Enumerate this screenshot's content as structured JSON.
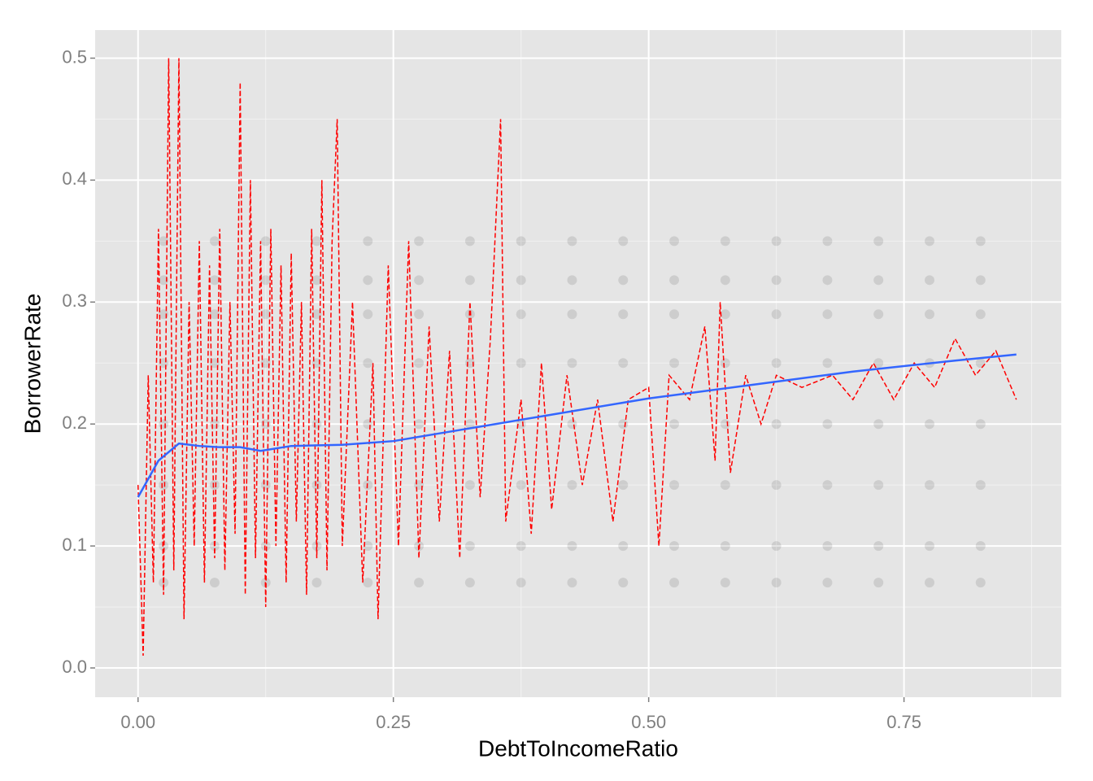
{
  "chart_data": {
    "type": "scatter",
    "x_label": "DebtToIncomeRatio",
    "y_label": "BorrowerRate",
    "xlim": [
      -0.042,
      0.904
    ],
    "ylim": [
      -0.024,
      0.523
    ],
    "xticks": [
      {
        "value": 0,
        "label": "0.00"
      },
      0.25,
      {
        "value": 0.5,
        "label": "0.50"
      },
      0.75
    ],
    "yticks": [
      {
        "value": 0,
        "label": "0.0"
      },
      0.1,
      0.2,
      0.3,
      0.4,
      0.5
    ],
    "x_minor_grid": [
      0.125,
      0.375,
      0.625,
      0.875
    ],
    "y_minor_grid": [
      0.05,
      0.15,
      0.25,
      0.35,
      0.45
    ],
    "grid": true,
    "layers": [
      {
        "type": "scatter",
        "color": "#000000",
        "alpha": 0.1,
        "x": [
          0.025,
          0.075,
          0.125,
          0.175,
          0.225,
          0.275,
          0.325,
          0.375,
          0.425,
          0.475,
          0.525,
          0.575,
          0.625,
          0.675,
          0.725,
          0.775,
          0.825,
          0.025,
          0.075,
          0.125,
          0.175,
          0.225,
          0.275,
          0.325,
          0.375,
          0.425,
          0.475,
          0.525,
          0.575,
          0.625,
          0.675,
          0.725,
          0.775,
          0.825,
          0.025,
          0.075,
          0.125,
          0.175,
          0.225,
          0.275,
          0.325,
          0.375,
          0.425,
          0.475,
          0.525,
          0.575,
          0.625,
          0.675,
          0.725,
          0.775,
          0.825,
          0.025,
          0.075,
          0.125,
          0.175,
          0.225,
          0.275,
          0.325,
          0.375,
          0.425,
          0.475,
          0.525,
          0.575,
          0.625,
          0.675,
          0.725,
          0.775,
          0.825,
          0.025,
          0.075,
          0.125,
          0.175,
          0.225,
          0.275,
          0.325,
          0.375,
          0.425,
          0.475,
          0.525,
          0.575,
          0.625,
          0.675,
          0.725,
          0.775,
          0.825,
          0.025,
          0.075,
          0.125,
          0.175,
          0.225,
          0.275,
          0.325,
          0.375,
          0.425,
          0.475,
          0.525,
          0.575,
          0.625,
          0.675,
          0.725,
          0.775,
          0.825,
          0.025,
          0.075,
          0.125,
          0.175,
          0.225,
          0.275,
          0.325,
          0.375,
          0.425,
          0.475,
          0.525,
          0.575,
          0.625,
          0.675,
          0.725,
          0.775,
          0.825,
          0.025,
          0.075,
          0.125,
          0.175,
          0.225,
          0.275,
          0.325,
          0.375,
          0.425,
          0.475,
          0.525,
          0.575,
          0.625,
          0.675,
          0.725,
          0.775,
          0.825
        ],
        "y": [
          0.35,
          0.35,
          0.35,
          0.35,
          0.35,
          0.35,
          0.35,
          0.35,
          0.35,
          0.35,
          0.35,
          0.35,
          0.35,
          0.35,
          0.35,
          0.35,
          0.35,
          0.318,
          0.318,
          0.318,
          0.318,
          0.318,
          0.318,
          0.318,
          0.318,
          0.318,
          0.318,
          0.318,
          0.318,
          0.318,
          0.318,
          0.318,
          0.318,
          0.318,
          0.29,
          0.29,
          0.29,
          0.29,
          0.29,
          0.29,
          0.29,
          0.29,
          0.29,
          0.29,
          0.29,
          0.29,
          0.29,
          0.29,
          0.29,
          0.29,
          0.29,
          0.25,
          0.25,
          0.25,
          0.25,
          0.25,
          0.25,
          0.25,
          0.25,
          0.25,
          0.25,
          0.25,
          0.25,
          0.25,
          0.25,
          0.25,
          0.25,
          0.25,
          0.2,
          0.2,
          0.2,
          0.2,
          0.2,
          0.2,
          0.2,
          0.2,
          0.2,
          0.2,
          0.2,
          0.2,
          0.2,
          0.2,
          0.2,
          0.2,
          0.2,
          0.15,
          0.15,
          0.15,
          0.15,
          0.15,
          0.15,
          0.15,
          0.15,
          0.15,
          0.15,
          0.15,
          0.15,
          0.15,
          0.15,
          0.15,
          0.15,
          0.15,
          0.1,
          0.1,
          0.1,
          0.1,
          0.1,
          0.1,
          0.1,
          0.1,
          0.1,
          0.1,
          0.1,
          0.1,
          0.1,
          0.1,
          0.1,
          0.1,
          0.1,
          0.07,
          0.07,
          0.07,
          0.07,
          0.07,
          0.07,
          0.07,
          0.07,
          0.07,
          0.07,
          0.07,
          0.07,
          0.07,
          0.07,
          0.07,
          0.07,
          0.07
        ]
      },
      {
        "type": "line",
        "style": "dashed",
        "color": "#ff0000",
        "x": [
          0,
          0.005,
          0.01,
          0.015,
          0.02,
          0.025,
          0.03,
          0.035,
          0.04,
          0.045,
          0.05,
          0.055,
          0.06,
          0.065,
          0.07,
          0.075,
          0.08,
          0.085,
          0.09,
          0.095,
          0.1,
          0.105,
          0.11,
          0.115,
          0.12,
          0.125,
          0.13,
          0.135,
          0.14,
          0.145,
          0.15,
          0.155,
          0.16,
          0.165,
          0.17,
          0.175,
          0.18,
          0.185,
          0.19,
          0.195,
          0.2,
          0.21,
          0.22,
          0.23,
          0.235,
          0.245,
          0.255,
          0.265,
          0.275,
          0.285,
          0.295,
          0.305,
          0.315,
          0.325,
          0.335,
          0.345,
          0.355,
          0.36,
          0.375,
          0.385,
          0.395,
          0.405,
          0.42,
          0.435,
          0.45,
          0.465,
          0.48,
          0.5,
          0.51,
          0.52,
          0.54,
          0.555,
          0.565,
          0.57,
          0.58,
          0.595,
          0.61,
          0.625,
          0.65,
          0.68,
          0.7,
          0.72,
          0.74,
          0.76,
          0.78,
          0.8,
          0.82,
          0.84,
          0.85,
          0.86
        ],
        "y": [
          0.15,
          0.01,
          0.24,
          0.07,
          0.36,
          0.06,
          0.5,
          0.08,
          0.5,
          0.04,
          0.3,
          0.1,
          0.35,
          0.07,
          0.33,
          0.09,
          0.36,
          0.08,
          0.3,
          0.11,
          0.48,
          0.06,
          0.4,
          0.09,
          0.35,
          0.05,
          0.36,
          0.1,
          0.33,
          0.07,
          0.34,
          0.12,
          0.3,
          0.06,
          0.36,
          0.09,
          0.4,
          0.08,
          0.35,
          0.45,
          0.1,
          0.3,
          0.07,
          0.25,
          0.04,
          0.33,
          0.1,
          0.35,
          0.09,
          0.28,
          0.12,
          0.26,
          0.09,
          0.3,
          0.14,
          0.27,
          0.45,
          0.12,
          0.22,
          0.11,
          0.25,
          0.13,
          0.24,
          0.15,
          0.22,
          0.12,
          0.22,
          0.23,
          0.1,
          0.24,
          0.22,
          0.28,
          0.17,
          0.3,
          0.16,
          0.24,
          0.2,
          0.24,
          0.23,
          0.24,
          0.22,
          0.25,
          0.22,
          0.25,
          0.23,
          0.27,
          0.24,
          0.26,
          0.24,
          0.22
        ]
      },
      {
        "type": "line",
        "style": "solid",
        "color": "#3366ff",
        "x": [
          0,
          0.02,
          0.04,
          0.06,
          0.08,
          0.1,
          0.12,
          0.15,
          0.2,
          0.25,
          0.3,
          0.35,
          0.4,
          0.5,
          0.6,
          0.7,
          0.8,
          0.86
        ],
        "y": [
          0.14,
          0.17,
          0.184,
          0.182,
          0.181,
          0.181,
          0.178,
          0.182,
          0.183,
          0.186,
          0.193,
          0.2,
          0.207,
          0.221,
          0.232,
          0.243,
          0.252,
          0.257
        ]
      }
    ]
  }
}
